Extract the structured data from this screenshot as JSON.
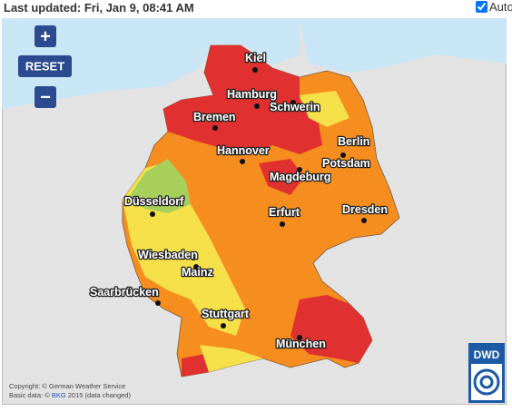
{
  "header": {
    "last_updated": "Last updated: Fri, Jan 9, 08:41 AM",
    "auto_label": "Auto"
  },
  "controls": {
    "zoom_in": "+",
    "reset": "RESET",
    "zoom_out": "−"
  },
  "cities": [
    "Kiel",
    "Hamburg",
    "Schwerin",
    "Bremen",
    "Berlin",
    "Hannover",
    "Potsdam",
    "Magdeburg",
    "Düsseldorf",
    "Erfurt",
    "Dresden",
    "Wiesbaden",
    "Mainz",
    "Saarbrücken",
    "Stuttgart",
    "München"
  ],
  "logo": "DWD",
  "attribution": {
    "copyright": "Copyright: © German Weather Service",
    "basic_data_prefix": "Basic data: ©",
    "basic_data_link": "BKG",
    "basic_data_suffix": "2015 (data changed)"
  }
}
